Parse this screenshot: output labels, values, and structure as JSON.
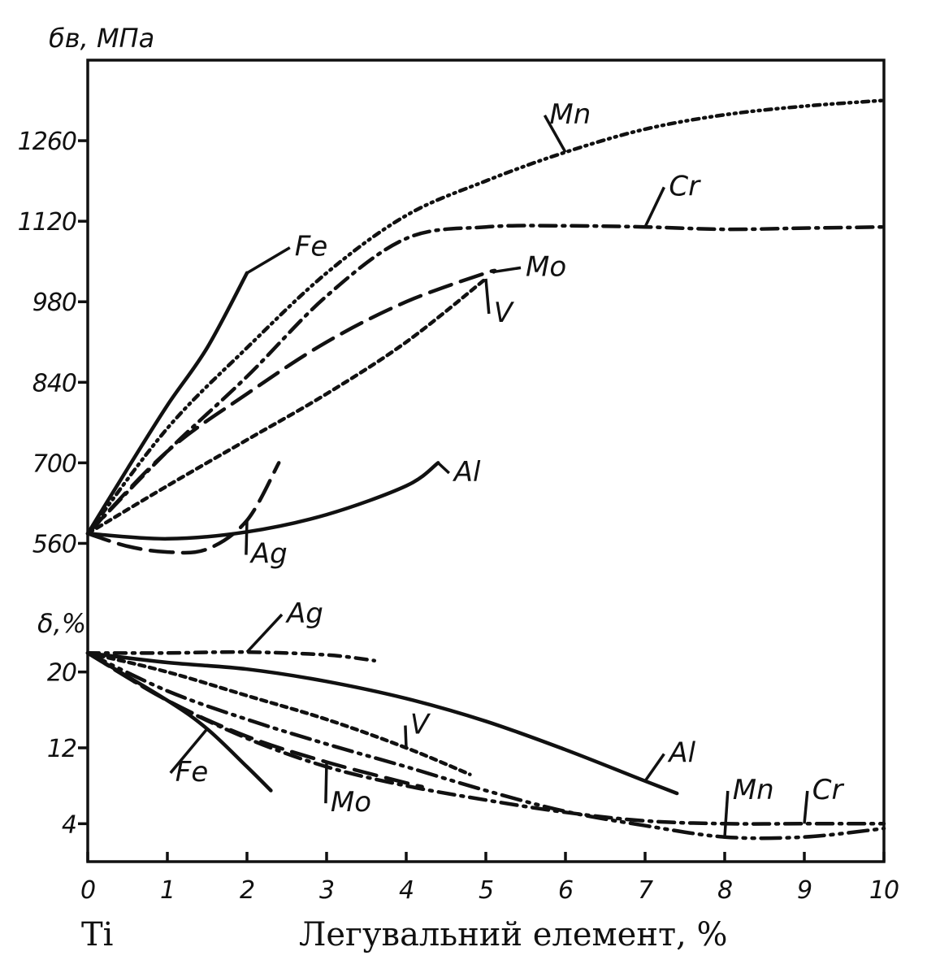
{
  "chart_data": {
    "type": "line",
    "x_ticks": [
      "0",
      "1",
      "2",
      "3",
      "4",
      "5",
      "6",
      "7",
      "8",
      "9",
      "10"
    ],
    "xlim": [
      0,
      10
    ],
    "caption_left": "Ti",
    "caption_center": "Легувальний елемент, %",
    "panels": [
      {
        "ylabel": "бв, МПа",
        "ylim": [
          490,
          1400
        ],
        "y_ticks": [
          560,
          700,
          840,
          980,
          1120,
          1260
        ],
        "y_tick_labels": [
          "560",
          "700",
          "840",
          "980",
          "1120",
          "1260"
        ],
        "series": [
          {
            "name": "Fe",
            "dash": "solid",
            "points": [
              [
                0,
                577
              ],
              [
                0.5,
                690
              ],
              [
                1,
                800
              ],
              [
                1.5,
                900
              ],
              [
                2,
                1030
              ]
            ],
            "label": {
              "x": 2.6,
              "y": 1060
            }
          },
          {
            "name": "Mn",
            "dash": "8 6 2 6 2 6",
            "points": [
              [
                0,
                577
              ],
              [
                1,
                760
              ],
              [
                2,
                900
              ],
              [
                3,
                1030
              ],
              [
                4,
                1130
              ],
              [
                5,
                1190
              ],
              [
                6,
                1240
              ],
              [
                7,
                1280
              ],
              [
                8,
                1305
              ],
              [
                9,
                1320
              ],
              [
                10,
                1330
              ]
            ],
            "label": {
              "x": 5.8,
              "y": 1290
            }
          },
          {
            "name": "Cr",
            "dash": "20 8 3 8",
            "points": [
              [
                0,
                577
              ],
              [
                1,
                720
              ],
              [
                2,
                850
              ],
              [
                3,
                990
              ],
              [
                4,
                1090
              ],
              [
                5,
                1110
              ],
              [
                6,
                1112
              ],
              [
                7,
                1110
              ],
              [
                8,
                1106
              ],
              [
                9,
                1108
              ],
              [
                10,
                1110
              ]
            ],
            "label": {
              "x": 7.3,
              "y": 1165
            }
          },
          {
            "name": "Mo",
            "dash": "28 12",
            "points": [
              [
                0,
                577
              ],
              [
                1,
                720
              ],
              [
                2,
                820
              ],
              [
                3,
                910
              ],
              [
                4,
                980
              ],
              [
                5,
                1030
              ],
              [
                5.1,
                1032
              ]
            ],
            "label": {
              "x": 5.5,
              "y": 1025
            }
          },
          {
            "name": "V",
            "dash": "7 6",
            "points": [
              [
                0,
                577
              ],
              [
                1,
                660
              ],
              [
                2,
                740
              ],
              [
                3,
                820
              ],
              [
                4,
                910
              ],
              [
                5,
                1020
              ]
            ],
            "label": {
              "x": 5.1,
              "y": 945
            }
          },
          {
            "name": "Al",
            "dash": "solid",
            "points": [
              [
                0,
                577
              ],
              [
                1,
                568
              ],
              [
                2,
                580
              ],
              [
                3,
                610
              ],
              [
                4,
                660
              ],
              [
                4.4,
                700
              ]
            ],
            "label": {
              "x": 4.6,
              "y": 668
            }
          },
          {
            "name": "Ag",
            "dash": "28 12",
            "points": [
              [
                0,
                577
              ],
              [
                0.5,
                555
              ],
              [
                1,
                545
              ],
              [
                1.5,
                550
              ],
              [
                2,
                600
              ],
              [
                2.4,
                700
              ]
            ],
            "label": {
              "x": 2.05,
              "y": 526
            }
          }
        ]
      },
      {
        "ylabel": "δ,%",
        "ylim": [
          0,
          27
        ],
        "y_ticks": [
          4,
          12,
          20
        ],
        "y_tick_labels": [
          "4",
          "12",
          "20"
        ],
        "series": [
          {
            "name": "Ag",
            "dash": "14 8 3 8",
            "points": [
              [
                0,
                22
              ],
              [
                1,
                22
              ],
              [
                2,
                22.1
              ],
              [
                3,
                21.8
              ],
              [
                3.6,
                21.2
              ]
            ],
            "label": {
              "x": 2.5,
              "y": 25.2
            }
          },
          {
            "name": "Al",
            "dash": "solid",
            "points": [
              [
                0,
                22
              ],
              [
                1,
                21
              ],
              [
                2,
                20.3
              ],
              [
                3,
                19
              ],
              [
                4,
                17.2
              ],
              [
                5,
                14.8
              ],
              [
                6,
                11.8
              ],
              [
                7,
                8.5
              ],
              [
                7.4,
                7.2
              ]
            ],
            "label": {
              "x": 7.3,
              "y": 10.5
            }
          },
          {
            "name": "V",
            "dash": "7 6",
            "points": [
              [
                0,
                22
              ],
              [
                1,
                20
              ],
              [
                2,
                17.5
              ],
              [
                3,
                15
              ],
              [
                4,
                12
              ],
              [
                4.8,
                9.2
              ]
            ],
            "label": {
              "x": 4.05,
              "y": 13.5
            }
          },
          {
            "name": "Mn",
            "dash": "24 8 3 8 3 8",
            "points": [
              [
                0,
                22
              ],
              [
                1,
                18
              ],
              [
                2,
                15
              ],
              [
                3,
                12.4
              ],
              [
                4,
                10
              ],
              [
                5,
                7.5
              ],
              [
                6,
                5.3
              ],
              [
                7,
                3.8
              ],
              [
                8,
                2.6
              ],
              [
                9,
                2.6
              ],
              [
                10,
                3.5
              ]
            ],
            "label": {
              "x": 8.1,
              "y": 6.6
            }
          },
          {
            "name": "Cr",
            "dash": "20 8 3 8",
            "points": [
              [
                0,
                22
              ],
              [
                1,
                17
              ],
              [
                2,
                13
              ],
              [
                3,
                10
              ],
              [
                4,
                8
              ],
              [
                5,
                6.5
              ],
              [
                6,
                5.2
              ],
              [
                7,
                4.3
              ],
              [
                8,
                4
              ],
              [
                9,
                4
              ],
              [
                10,
                4
              ]
            ],
            "label": {
              "x": 9.1,
              "y": 6.6
            }
          },
          {
            "name": "Mo",
            "dash": "28 12",
            "points": [
              [
                0,
                22
              ],
              [
                1,
                17
              ],
              [
                2,
                13.2
              ],
              [
                3,
                10.5
              ],
              [
                4,
                8.3
              ],
              [
                4.2,
                7.9
              ]
            ],
            "label": {
              "x": 3.05,
              "y": 5.3
            }
          },
          {
            "name": "Fe",
            "dash": "solid",
            "points": [
              [
                0,
                22
              ],
              [
                1,
                17
              ],
              [
                1.5,
                14
              ],
              [
                2,
                10
              ],
              [
                2.3,
                7.5
              ]
            ],
            "label": {
              "x": 1.1,
              "y": 8.5
            }
          }
        ]
      }
    ]
  }
}
